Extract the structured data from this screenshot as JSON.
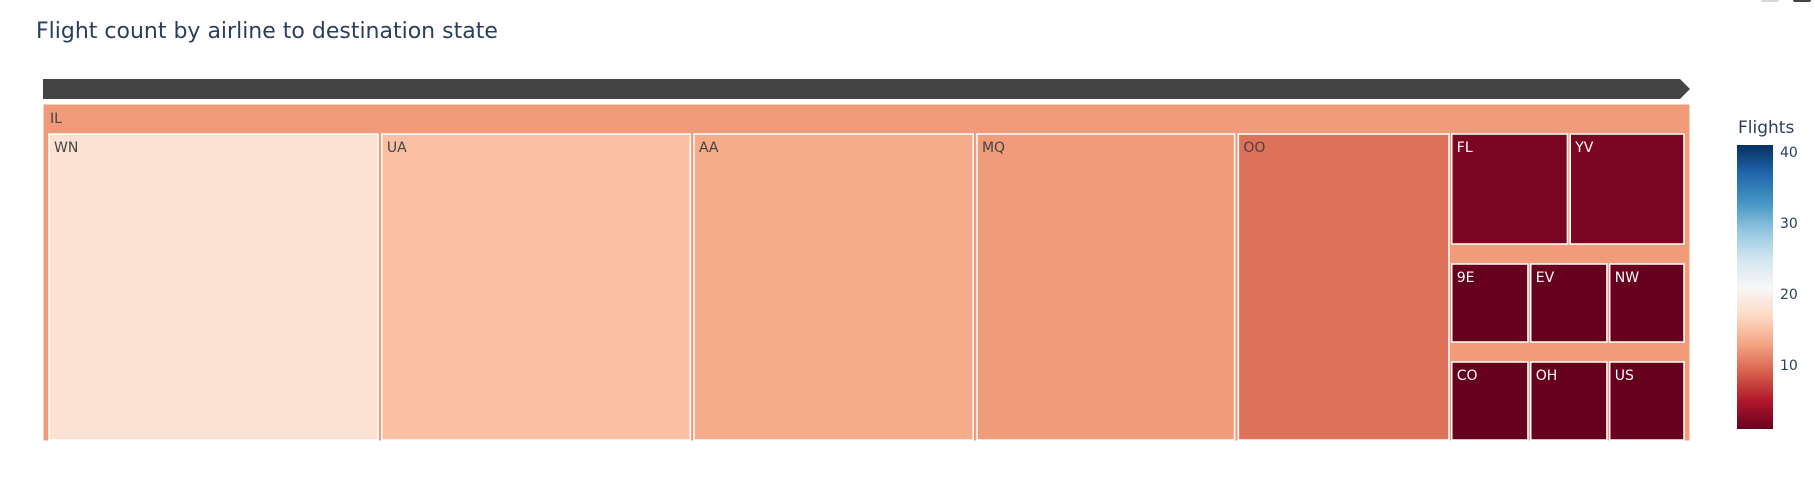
{
  "chart_data": {
    "type": "treemap",
    "title": "Flight count by airline to destination state",
    "root": {
      "label": "IL"
    },
    "tiles": [
      {
        "label": "WN",
        "value": 18
      },
      {
        "label": "UA",
        "value": 15
      },
      {
        "label": "AA",
        "value": 13.5
      },
      {
        "label": "MQ",
        "value": 12.5
      },
      {
        "label": "OO",
        "value": 10
      },
      {
        "label": "FL",
        "value": 2
      },
      {
        "label": "YV",
        "value": 2
      },
      {
        "label": "9E",
        "value": 1
      },
      {
        "label": "EV",
        "value": 1
      },
      {
        "label": "NW",
        "value": 1
      },
      {
        "label": "CO",
        "value": 1
      },
      {
        "label": "OH",
        "value": 1
      },
      {
        "label": "US",
        "value": 1
      }
    ],
    "root_color_value": 12.5,
    "colorbar": {
      "title": "Flights",
      "ticks": [
        10,
        20,
        30,
        40
      ],
      "range": [
        1,
        41
      ],
      "colorscale": "RdBu"
    }
  }
}
